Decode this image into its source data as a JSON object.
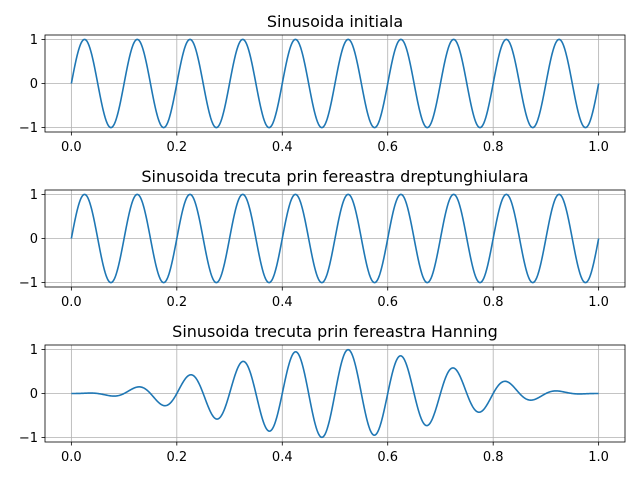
{
  "chart_data": [
    {
      "type": "line",
      "title": "Sinusoida initiala",
      "xlabel": "",
      "ylabel": "",
      "xlim": [
        -0.05,
        1.05
      ],
      "ylim": [
        -1.1,
        1.1
      ],
      "xticks": [
        0.0,
        0.2,
        0.4,
        0.6,
        0.8,
        1.0
      ],
      "xtick_labels": [
        "0.0",
        "0.2",
        "0.4",
        "0.6",
        "0.8",
        "1.0"
      ],
      "yticks": [
        -1,
        0,
        1
      ],
      "ytick_labels": [
        "−1",
        "0",
        "1"
      ],
      "grid": true,
      "series": [
        {
          "frequency_hz": 10,
          "amplitude": 1,
          "window": "none",
          "color": "#1f77b4"
        }
      ]
    },
    {
      "type": "line",
      "title": "Sinusoida trecuta prin fereastra dreptunghiulara",
      "xlabel": "",
      "ylabel": "",
      "xlim": [
        -0.05,
        1.05
      ],
      "ylim": [
        -1.1,
        1.1
      ],
      "xticks": [
        0.0,
        0.2,
        0.4,
        0.6,
        0.8,
        1.0
      ],
      "xtick_labels": [
        "0.0",
        "0.2",
        "0.4",
        "0.6",
        "0.8",
        "1.0"
      ],
      "yticks": [
        -1,
        0,
        1
      ],
      "ytick_labels": [
        "−1",
        "0",
        "1"
      ],
      "grid": true,
      "series": [
        {
          "frequency_hz": 10,
          "amplitude": 1,
          "window": "rectangular",
          "color": "#1f77b4"
        }
      ]
    },
    {
      "type": "line",
      "title": "Sinusoida trecuta prin fereastra Hanning",
      "xlabel": "",
      "ylabel": "",
      "xlim": [
        -0.05,
        1.05
      ],
      "ylim": [
        -1.1,
        1.1
      ],
      "xticks": [
        0.0,
        0.2,
        0.4,
        0.6,
        0.8,
        1.0
      ],
      "xtick_labels": [
        "0.0",
        "0.2",
        "0.4",
        "0.6",
        "0.8",
        "1.0"
      ],
      "yticks": [
        -1,
        0,
        1
      ],
      "ytick_labels": [
        "−1",
        "0",
        "1"
      ],
      "grid": true,
      "series": [
        {
          "frequency_hz": 10,
          "amplitude": 1,
          "window": "hanning",
          "color": "#1f77b4"
        }
      ]
    }
  ]
}
